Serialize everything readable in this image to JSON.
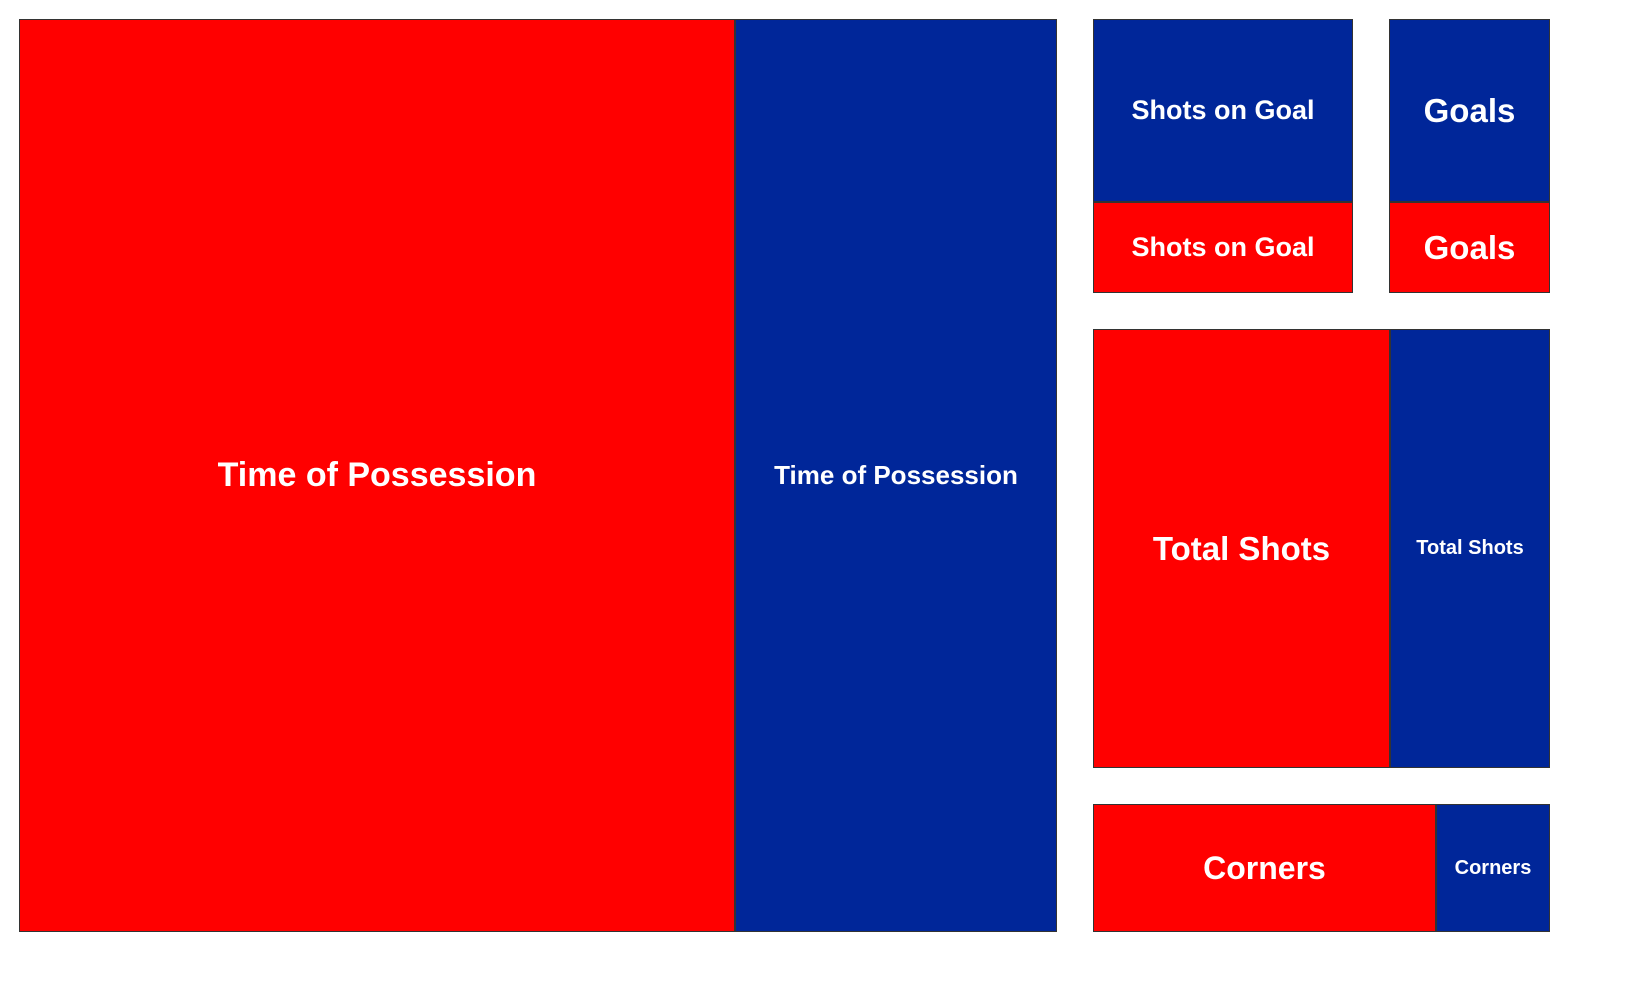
{
  "chart_data": {
    "type": "treemap",
    "title": "",
    "series_colors": [
      "#ff0000",
      "#002699"
    ],
    "groups": [
      {
        "name": "Time of Possession",
        "items": [
          {
            "label": "Time of Possession",
            "color": "#ff0000",
            "value": 69
          },
          {
            "label": "Time of Possession",
            "color": "#002699",
            "value": 31
          }
        ]
      },
      {
        "name": "Shots on Goal",
        "items": [
          {
            "label": "Shots on Goal",
            "color": "#002699",
            "value": 4
          },
          {
            "label": "Shots on Goal",
            "color": "#ff0000",
            "value": 2
          }
        ]
      },
      {
        "name": "Goals",
        "items": [
          {
            "label": "Goals",
            "color": "#002699",
            "value": 2
          },
          {
            "label": "Goals",
            "color": "#ff0000",
            "value": 1
          }
        ]
      },
      {
        "name": "Total Shots",
        "items": [
          {
            "label": "Total Shots",
            "color": "#ff0000",
            "value": 13
          },
          {
            "label": "Total Shots",
            "color": "#002699",
            "value": 7
          }
        ]
      },
      {
        "name": "Corners",
        "items": [
          {
            "label": "Corners",
            "color": "#ff0000",
            "value": 6
          },
          {
            "label": "Corners",
            "color": "#002699",
            "value": 2
          }
        ]
      }
    ]
  }
}
